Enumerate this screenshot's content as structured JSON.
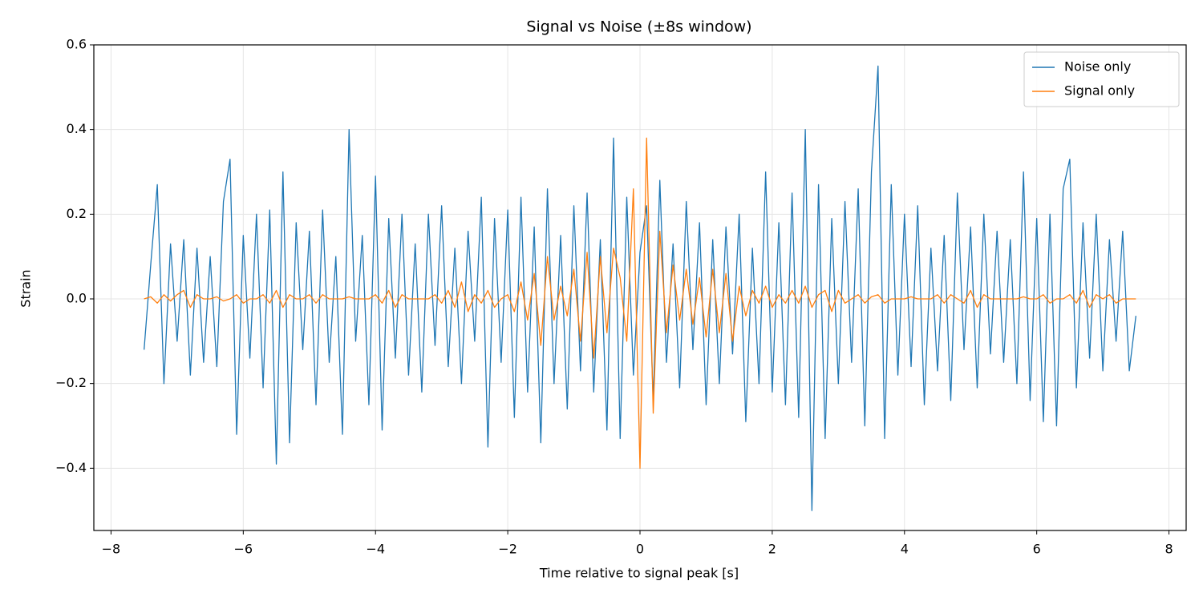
{
  "chart_data": {
    "type": "line",
    "title": "Signal vs Noise (±8s window)",
    "x_label": "Time relative to signal peak [s]",
    "y_label": "Strain",
    "xlim": [
      -8.26,
      8.26
    ],
    "ylim": [
      -0.547,
      0.6
    ],
    "xticks": [
      {
        "value": -8,
        "label": "−8"
      },
      {
        "value": -6,
        "label": "−6"
      },
      {
        "value": -4,
        "label": "−4"
      },
      {
        "value": -2,
        "label": "−2"
      },
      0,
      2,
      4,
      6,
      8
    ],
    "yticks": [
      {
        "value": -0.4,
        "label": "−0.4"
      },
      {
        "value": -0.2,
        "label": "−0.2"
      },
      {
        "value": 0,
        "label": "0.0"
      },
      0.2,
      0.4,
      0.6
    ],
    "grid": true,
    "legend": "upper right",
    "x": [
      -7.5,
      -7.4,
      -7.3,
      -7.2,
      -7.1,
      -7,
      -6.9,
      -6.8,
      -6.7,
      -6.6,
      -6.5,
      -6.4,
      -6.3,
      -6.2,
      -6.1,
      -6,
      -5.9,
      -5.8,
      -5.7,
      -5.6,
      -5.5,
      -5.4,
      -5.3,
      -5.2,
      -5.1,
      -5,
      -4.9,
      -4.8,
      -4.7,
      -4.6,
      -4.5,
      -4.4,
      -4.3,
      -4.2,
      -4.1,
      -4,
      -3.9,
      -3.8,
      -3.7,
      -3.6,
      -3.5,
      -3.4,
      -3.3,
      -3.2,
      -3.1,
      -3,
      -2.9,
      -2.8,
      -2.7,
      -2.6,
      -2.5,
      -2.4,
      -2.3,
      -2.2,
      -2.1,
      -2,
      -1.9,
      -1.8,
      -1.7,
      -1.6,
      -1.5,
      -1.4,
      -1.3,
      -1.2,
      -1.1,
      -1,
      -0.9,
      -0.8,
      -0.7,
      -0.6,
      -0.5,
      -0.4,
      -0.3,
      -0.2,
      -0.1,
      0,
      0.1,
      0.2,
      0.3,
      0.4,
      0.5,
      0.6,
      0.7,
      0.8,
      0.9,
      1,
      1.1,
      1.2,
      1.3,
      1.4,
      1.5,
      1.6,
      1.7,
      1.8,
      1.9,
      2,
      2.1,
      2.2,
      2.3,
      2.4,
      2.5,
      2.6,
      2.7,
      2.8,
      2.9,
      3,
      3.1,
      3.2,
      3.3,
      3.4,
      3.5,
      3.6,
      3.7,
      3.8,
      3.9,
      4,
      4.1,
      4.2,
      4.3,
      4.4,
      4.5,
      4.6,
      4.7,
      4.8,
      4.9,
      5,
      5.1,
      5.2,
      5.3,
      5.4,
      5.5,
      5.6,
      5.7,
      5.8,
      5.9,
      6,
      6.1,
      6.2,
      6.3,
      6.4,
      6.5,
      6.6,
      6.7,
      6.8,
      6.9,
      7,
      7.1,
      7.2,
      7.3,
      7.4,
      7.5
    ],
    "series": [
      {
        "name": "Noise only",
        "color": "#1f77b4",
        "values": [
          -0.12,
          0.08,
          0.27,
          -0.2,
          0.13,
          -0.1,
          0.14,
          -0.18,
          0.12,
          -0.15,
          0.1,
          -0.16,
          0.23,
          0.33,
          -0.32,
          0.15,
          -0.14,
          0.2,
          -0.21,
          0.21,
          -0.39,
          0.3,
          -0.34,
          0.18,
          -0.12,
          0.16,
          -0.25,
          0.21,
          -0.15,
          0.1,
          -0.32,
          0.4,
          -0.1,
          0.15,
          -0.25,
          0.29,
          -0.31,
          0.19,
          -0.14,
          0.2,
          -0.18,
          0.13,
          -0.22,
          0.2,
          -0.11,
          0.22,
          -0.16,
          0.12,
          -0.2,
          0.16,
          -0.1,
          0.24,
          -0.35,
          0.19,
          -0.15,
          0.21,
          -0.28,
          0.24,
          -0.22,
          0.17,
          -0.34,
          0.26,
          -0.2,
          0.15,
          -0.26,
          0.22,
          -0.17,
          0.25,
          -0.22,
          0.14,
          -0.31,
          0.38,
          -0.33,
          0.24,
          -0.18,
          0.11,
          0.22,
          -0.24,
          0.28,
          -0.15,
          0.13,
          -0.21,
          0.23,
          -0.12,
          0.18,
          -0.25,
          0.14,
          -0.2,
          0.17,
          -0.13,
          0.2,
          -0.29,
          0.12,
          -0.2,
          0.3,
          -0.22,
          0.18,
          -0.25,
          0.25,
          -0.28,
          0.4,
          -0.5,
          0.27,
          -0.33,
          0.19,
          -0.2,
          0.23,
          -0.15,
          0.26,
          -0.3,
          0.3,
          0.55,
          -0.33,
          0.27,
          -0.18,
          0.2,
          -0.16,
          0.22,
          -0.25,
          0.12,
          -0.17,
          0.15,
          -0.24,
          0.25,
          -0.12,
          0.17,
          -0.21,
          0.2,
          -0.13,
          0.16,
          -0.15,
          0.14,
          -0.2,
          0.3,
          -0.24,
          0.19,
          -0.29,
          0.2,
          -0.3,
          0.26,
          0.33,
          -0.21,
          0.18,
          -0.14,
          0.2,
          -0.17,
          0.14,
          -0.1,
          0.16,
          -0.17,
          -0.04
        ]
      },
      {
        "name": "Signal only",
        "color": "#ff7f0e",
        "values": [
          0,
          0.005,
          -0.01,
          0.01,
          -0.005,
          0.01,
          0.02,
          -0.02,
          0.01,
          0,
          0,
          0.005,
          -0.005,
          0,
          0.01,
          -0.01,
          0,
          0,
          0.01,
          -0.01,
          0.02,
          -0.02,
          0.01,
          0,
          0,
          0.01,
          -0.01,
          0.01,
          0,
          0,
          0,
          0.005,
          0,
          0,
          0,
          0.01,
          -0.01,
          0.02,
          -0.02,
          0.01,
          0,
          0,
          0,
          0,
          0.01,
          -0.01,
          0.02,
          -0.02,
          0.04,
          -0.03,
          0.01,
          -0.01,
          0.02,
          -0.02,
          0,
          0.01,
          -0.03,
          0.04,
          -0.05,
          0.06,
          -0.11,
          0.1,
          -0.05,
          0.03,
          -0.04,
          0.07,
          -0.1,
          0.11,
          -0.14,
          0.1,
          -0.08,
          0.12,
          0.05,
          -0.1,
          0.26,
          -0.4,
          0.38,
          -0.27,
          0.16,
          -0.08,
          0.08,
          -0.05,
          0.07,
          -0.06,
          0.05,
          -0.09,
          0.07,
          -0.08,
          0.06,
          -0.1,
          0.03,
          -0.04,
          0.02,
          -0.01,
          0.03,
          -0.02,
          0.01,
          -0.01,
          0.02,
          -0.01,
          0.03,
          -0.02,
          0.01,
          0.02,
          -0.03,
          0.02,
          -0.01,
          0,
          0.01,
          -0.01,
          0.005,
          0.01,
          -0.01,
          0,
          0,
          0,
          0.005,
          0,
          0,
          0,
          0.01,
          -0.01,
          0.01,
          0,
          -0.01,
          0.02,
          -0.02,
          0.01,
          0,
          0,
          0,
          0,
          0,
          0.005,
          0,
          0,
          0.01,
          -0.01,
          0,
          0,
          0.01,
          -0.01,
          0.02,
          -0.02,
          0.01,
          0,
          0.01,
          -0.01,
          0,
          0,
          0
        ]
      }
    ]
  }
}
